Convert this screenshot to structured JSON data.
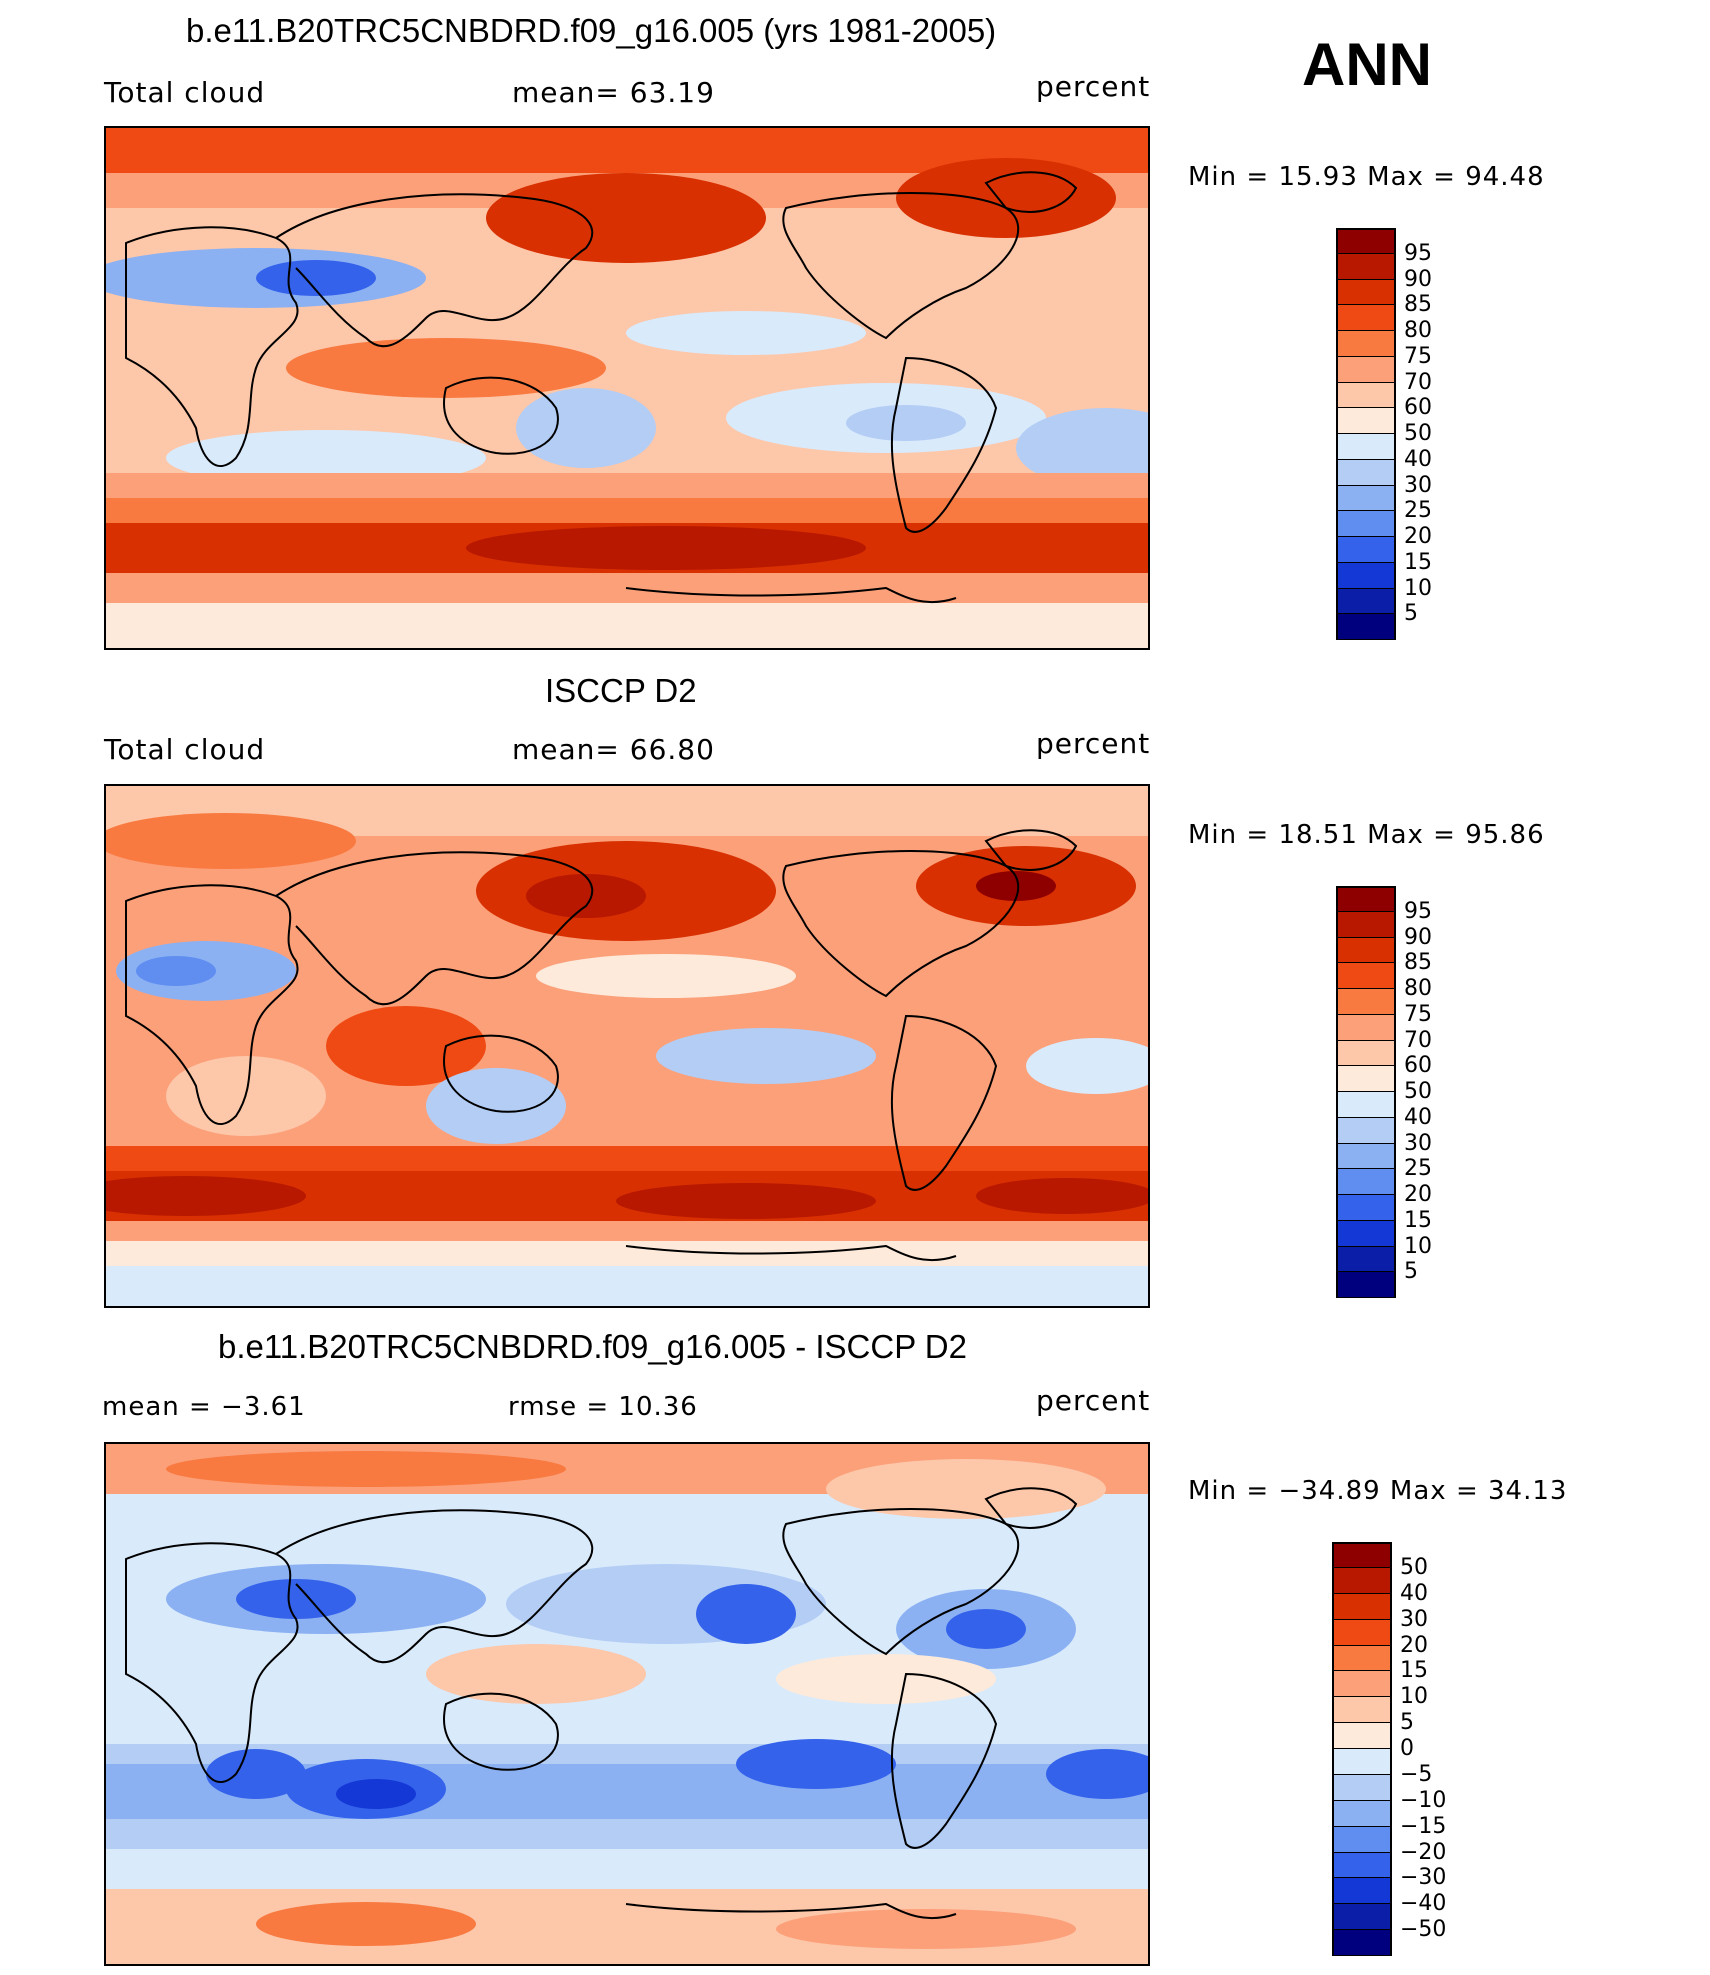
{
  "ann_label": "ANN",
  "panels": [
    {
      "title": "b.e11.B20TRC5CNBDRD.f09_g16.005 (yrs 1981-2005)",
      "left_label": "Total cloud",
      "center_label": "mean=   63.19",
      "right_label": "percent",
      "stats": "Min =   15.93 Max =   94.48",
      "palette": "abs"
    },
    {
      "title": "ISCCP D2",
      "left_label": "Total cloud",
      "center_label": "mean=   66.80",
      "right_label": "percent",
      "stats": "Min =   18.51 Max =   95.86",
      "palette": "abs"
    },
    {
      "title": "b.e11.B20TRC5CNBDRD.f09_g16.005 - ISCCP D2",
      "left_label": "mean =   −3.61",
      "center_label": "rmse =   10.36",
      "right_label": "percent",
      "stats": "Min = −34.89 Max =   34.13",
      "palette": "diff"
    }
  ],
  "colorbars": {
    "abs": {
      "labels": [
        "95",
        "90",
        "85",
        "80",
        "75",
        "70",
        "60",
        "50",
        "40",
        "30",
        "25",
        "20",
        "15",
        "10",
        "5"
      ],
      "colors": [
        "#8e0000",
        "#b81800",
        "#d83000",
        "#ef4a14",
        "#f97a40",
        "#fca07a",
        "#fdc7aa",
        "#fdeadb",
        "#d9eafb",
        "#b3cdf5",
        "#8bb1f3",
        "#5f8ef0",
        "#3462eb",
        "#1438d6",
        "#0a1ea8",
        "#00007f"
      ]
    },
    "diff": {
      "labels": [
        "50",
        "40",
        "30",
        "20",
        "15",
        "10",
        "5",
        "0",
        "−5",
        "−10",
        "−15",
        "−20",
        "−30",
        "−40",
        "−50"
      ],
      "colors": [
        "#8e0000",
        "#b81800",
        "#d83000",
        "#ef4a14",
        "#f97a40",
        "#fca07a",
        "#fdc7aa",
        "#fdeadb",
        "#d9eafb",
        "#b3cdf5",
        "#8bb1f3",
        "#5f8ef0",
        "#3462eb",
        "#1438d6",
        "#0a1ea8",
        "#00007f"
      ]
    }
  }
}
